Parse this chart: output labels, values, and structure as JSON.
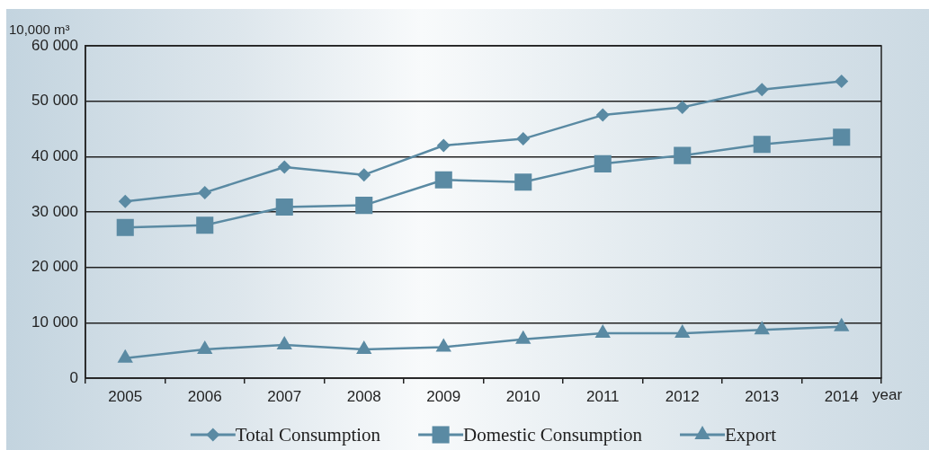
{
  "chart_data": {
    "type": "line",
    "xlabel": "year",
    "ylabel": "10,000 m³",
    "categories": [
      "2005",
      "2006",
      "2007",
      "2008",
      "2009",
      "2010",
      "2011",
      "2012",
      "2013",
      "2014"
    ],
    "series": [
      {
        "name": "Total Consumption",
        "color": "#5a8aa3",
        "marker": "diamond",
        "values": [
          31900,
          33500,
          38100,
          36700,
          42000,
          43200,
          47500,
          48900,
          52100,
          53600
        ]
      },
      {
        "name": "Domestic Consumption",
        "color": "#5a8aa3",
        "marker": "square",
        "values": [
          27200,
          27600,
          30900,
          31200,
          35800,
          35400,
          38700,
          40200,
          42200,
          43500
        ]
      },
      {
        "name": "Export",
        "color": "#5a8aa3",
        "marker": "triangle",
        "values": [
          3600,
          5200,
          6000,
          5200,
          5600,
          7000,
          8100,
          8100,
          8700,
          9300
        ]
      }
    ],
    "ylim": [
      0,
      60000
    ],
    "yticks": [
      0,
      {
        "value": 10000,
        "label": "10 000"
      },
      {
        "value": 20000,
        "label": "20 000"
      },
      {
        "value": 30000,
        "label": "30 000"
      },
      {
        "value": 40000,
        "label": "40 000"
      },
      {
        "value": 50000,
        "label": "50 000"
      },
      {
        "value": 60000,
        "label": "60 000"
      }
    ],
    "grid": "y",
    "legend": "bottom",
    "line_style": "solid"
  }
}
